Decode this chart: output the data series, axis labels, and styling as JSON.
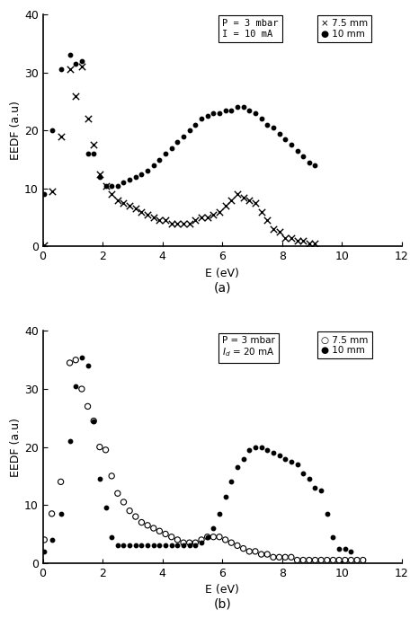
{
  "panel_a": {
    "title": "(a)",
    "cond_label": "P = 3 mbar\nI = 10 mA",
    "x75": [
      0.05,
      0.3,
      0.6,
      0.9,
      1.1,
      1.3,
      1.5,
      1.7,
      1.9,
      2.1,
      2.3,
      2.5,
      2.7,
      2.9,
      3.1,
      3.3,
      3.5,
      3.7,
      3.9,
      4.1,
      4.3,
      4.5,
      4.7,
      4.9,
      5.1,
      5.3,
      5.5,
      5.7,
      5.9,
      6.1,
      6.3,
      6.5,
      6.7,
      6.9,
      7.1,
      7.3,
      7.5,
      7.7,
      7.9,
      8.1,
      8.3,
      8.5,
      8.7,
      8.9,
      9.1
    ],
    "y75": [
      0.2,
      9.5,
      19.0,
      30.5,
      26.0,
      31.0,
      22.0,
      17.5,
      12.5,
      10.5,
      9.0,
      8.0,
      7.5,
      7.0,
      6.5,
      6.0,
      5.5,
      5.0,
      4.5,
      4.5,
      4.0,
      4.0,
      4.0,
      4.0,
      4.5,
      5.0,
      5.0,
      5.5,
      6.0,
      7.0,
      8.0,
      9.0,
      8.5,
      8.0,
      7.5,
      6.0,
      4.5,
      3.0,
      2.5,
      1.5,
      1.5,
      1.0,
      1.0,
      0.5,
      0.5
    ],
    "x10": [
      0.05,
      0.3,
      0.6,
      0.9,
      1.1,
      1.3,
      1.5,
      1.7,
      1.9,
      2.1,
      2.3,
      2.5,
      2.7,
      2.9,
      3.1,
      3.3,
      3.5,
      3.7,
      3.9,
      4.1,
      4.3,
      4.5,
      4.7,
      4.9,
      5.1,
      5.3,
      5.5,
      5.7,
      5.9,
      6.1,
      6.3,
      6.5,
      6.7,
      6.9,
      7.1,
      7.3,
      7.5,
      7.7,
      7.9,
      8.1,
      8.3,
      8.5,
      8.7,
      8.9,
      9.1
    ],
    "y10": [
      9.0,
      20.0,
      30.5,
      33.0,
      31.5,
      32.0,
      16.0,
      16.0,
      12.0,
      10.5,
      10.5,
      10.5,
      11.0,
      11.5,
      12.0,
      12.5,
      13.0,
      14.0,
      15.0,
      16.0,
      17.0,
      18.0,
      19.0,
      20.0,
      21.0,
      22.0,
      22.5,
      23.0,
      23.0,
      23.5,
      23.5,
      24.0,
      24.0,
      23.5,
      23.0,
      22.0,
      21.0,
      20.5,
      19.5,
      18.5,
      17.5,
      16.5,
      15.5,
      14.5,
      14.0
    ]
  },
  "panel_b": {
    "title": "(b)",
    "cond_label": "P = 3 mbar\n$I_d$ = 20 mA",
    "x75": [
      0.05,
      0.3,
      0.6,
      0.9,
      1.1,
      1.3,
      1.5,
      1.7,
      1.9,
      2.1,
      2.3,
      2.5,
      2.7,
      2.9,
      3.1,
      3.3,
      3.5,
      3.7,
      3.9,
      4.1,
      4.3,
      4.5,
      4.7,
      4.9,
      5.1,
      5.3,
      5.5,
      5.7,
      5.9,
      6.1,
      6.3,
      6.5,
      6.7,
      6.9,
      7.1,
      7.3,
      7.5,
      7.7,
      7.9,
      8.1,
      8.3,
      8.5,
      8.7,
      8.9,
      9.1,
      9.3,
      9.5,
      9.7,
      9.9,
      10.1,
      10.3,
      10.5,
      10.7
    ],
    "y75": [
      4.0,
      8.5,
      14.0,
      34.5,
      35.0,
      30.0,
      27.0,
      24.5,
      20.0,
      19.5,
      15.0,
      12.0,
      10.5,
      9.0,
      8.0,
      7.0,
      6.5,
      6.0,
      5.5,
      5.0,
      4.5,
      4.0,
      3.5,
      3.5,
      3.5,
      4.0,
      4.5,
      4.5,
      4.5,
      4.0,
      3.5,
      3.0,
      2.5,
      2.0,
      2.0,
      1.5,
      1.5,
      1.0,
      1.0,
      1.0,
      1.0,
      0.5,
      0.5,
      0.5,
      0.5,
      0.5,
      0.5,
      0.5,
      0.5,
      0.5,
      0.5,
      0.5,
      0.5
    ],
    "x10": [
      0.05,
      0.3,
      0.6,
      0.9,
      1.1,
      1.3,
      1.5,
      1.7,
      1.9,
      2.1,
      2.3,
      2.5,
      2.7,
      2.9,
      3.1,
      3.3,
      3.5,
      3.7,
      3.9,
      4.1,
      4.3,
      4.5,
      4.7,
      4.9,
      5.1,
      5.3,
      5.5,
      5.7,
      5.9,
      6.1,
      6.3,
      6.5,
      6.7,
      6.9,
      7.1,
      7.3,
      7.5,
      7.7,
      7.9,
      8.1,
      8.3,
      8.5,
      8.7,
      8.9,
      9.1,
      9.3,
      9.5,
      9.7,
      9.9,
      10.1,
      10.3
    ],
    "y10": [
      2.0,
      4.0,
      8.5,
      21.0,
      30.5,
      35.5,
      34.0,
      24.5,
      14.5,
      9.5,
      4.5,
      3.0,
      3.0,
      3.0,
      3.0,
      3.0,
      3.0,
      3.0,
      3.0,
      3.0,
      3.0,
      3.0,
      3.0,
      3.0,
      3.0,
      3.5,
      4.5,
      6.0,
      8.5,
      11.5,
      14.0,
      16.5,
      18.0,
      19.5,
      20.0,
      20.0,
      19.5,
      19.0,
      18.5,
      18.0,
      17.5,
      17.0,
      15.5,
      14.5,
      13.0,
      12.5,
      8.5,
      4.5,
      2.5,
      2.5,
      2.0
    ]
  },
  "ylabel": "EEDF (a.u)",
  "xlabel": "E (eV)",
  "ylim": [
    0,
    40
  ],
  "xlim": [
    0,
    12
  ],
  "yticks": [
    0,
    10,
    20,
    30,
    40
  ],
  "xticks": [
    0,
    2,
    4,
    6,
    8,
    10,
    12
  ]
}
